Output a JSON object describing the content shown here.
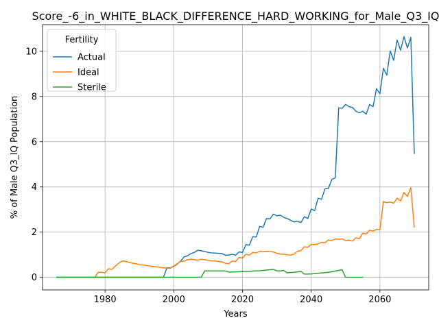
{
  "chart_data": {
    "type": "line",
    "title": "Score_-6_in_WHITE_BLACK_DIFFERENCE_HARD_WORKING_for_Male_Q3_IQ",
    "xlabel": "Years",
    "ylabel": "% of Male Q3_IQ Population",
    "xlim": [
      1961.8,
      2074.2
    ],
    "ylim": [
      -0.56,
      11.18
    ],
    "xticks": [
      1980,
      2000,
      2020,
      2040,
      2060
    ],
    "yticks": [
      0,
      2,
      4,
      6,
      8,
      10
    ],
    "grid": true,
    "legend": {
      "title": "Fertility",
      "position": "top-left"
    },
    "series": [
      {
        "name": "Actual",
        "color": "#1f77b4",
        "x": [
          1966,
          1970,
          1975,
          1980,
          1985,
          1990,
          1995,
          1997,
          1998,
          1999,
          2000,
          2001,
          2002,
          2003,
          2004,
          2005,
          2006,
          2007,
          2008,
          2009,
          2010,
          2011,
          2012,
          2013,
          2014,
          2015,
          2016,
          2017,
          2018,
          2019,
          2020,
          2021,
          2022,
          2023,
          2024,
          2025,
          2026,
          2027,
          2028,
          2029,
          2030,
          2031,
          2032,
          2033,
          2034,
          2035,
          2036,
          2037,
          2038,
          2039,
          2040,
          2041,
          2042,
          2043,
          2044,
          2045,
          2046,
          2047,
          2048,
          2049,
          2050,
          2051,
          2052,
          2053,
          2054,
          2055,
          2056,
          2057,
          2058,
          2059,
          2060,
          2061,
          2062,
          2063,
          2064,
          2065,
          2066,
          2067,
          2068,
          2069,
          2070
        ],
        "values": [
          0,
          0,
          0,
          0,
          0,
          0,
          0,
          0,
          0.42,
          0.42,
          0.48,
          0.58,
          0.72,
          0.9,
          0.95,
          1.05,
          1.1,
          1.2,
          1.17,
          1.14,
          1.1,
          1.08,
          1.07,
          1.06,
          1.05,
          0.98,
          0.98,
          1.02,
          0.98,
          1.12,
          1.1,
          1.45,
          1.42,
          1.8,
          1.78,
          2.25,
          2.22,
          2.6,
          2.58,
          2.8,
          2.72,
          2.75,
          2.65,
          2.6,
          2.52,
          2.45,
          2.48,
          2.42,
          2.68,
          2.6,
          3.02,
          2.95,
          3.5,
          3.45,
          3.92,
          3.93,
          4.33,
          4.4,
          7.5,
          7.48,
          7.65,
          7.55,
          7.52,
          7.35,
          7.28,
          7.35,
          7.22,
          7.65,
          7.55,
          8.35,
          8.12,
          9.25,
          8.95,
          10.02,
          9.6,
          10.5,
          10.05,
          10.65,
          10.15,
          10.62,
          5.48
        ]
      },
      {
        "name": "Ideal",
        "color": "#ff7f0e",
        "x": [
          1966,
          1970,
          1975,
          1977,
          1978,
          1979,
          1980,
          1981,
          1982,
          1983,
          1984,
          1985,
          1986,
          1987,
          1988,
          1989,
          1990,
          1991,
          1992,
          1993,
          1994,
          1995,
          1996,
          1997,
          1998,
          1999,
          2000,
          2001,
          2002,
          2003,
          2004,
          2005,
          2006,
          2007,
          2008,
          2009,
          2010,
          2011,
          2012,
          2013,
          2014,
          2015,
          2016,
          2017,
          2018,
          2019,
          2020,
          2021,
          2022,
          2023,
          2024,
          2025,
          2026,
          2027,
          2028,
          2029,
          2030,
          2031,
          2032,
          2033,
          2034,
          2035,
          2036,
          2037,
          2038,
          2039,
          2040,
          2041,
          2042,
          2043,
          2044,
          2045,
          2046,
          2047,
          2048,
          2049,
          2050,
          2051,
          2052,
          2053,
          2054,
          2055,
          2056,
          2057,
          2058,
          2059,
          2060,
          2061,
          2062,
          2063,
          2064,
          2065,
          2066,
          2067,
          2068,
          2069,
          2070
        ],
        "values": [
          0,
          0,
          0,
          0,
          0.22,
          0.22,
          0.2,
          0.38,
          0.35,
          0.5,
          0.62,
          0.73,
          0.7,
          0.66,
          0.62,
          0.6,
          0.56,
          0.54,
          0.52,
          0.5,
          0.48,
          0.46,
          0.44,
          0.42,
          0.4,
          0.4,
          0.5,
          0.6,
          0.7,
          0.72,
          0.78,
          0.8,
          0.78,
          0.76,
          0.8,
          0.78,
          0.75,
          0.72,
          0.72,
          0.7,
          0.68,
          0.62,
          0.6,
          0.72,
          0.7,
          0.88,
          0.85,
          1.02,
          0.98,
          1.1,
          1.08,
          1.15,
          1.13,
          1.15,
          1.14,
          1.12,
          1.06,
          1.03,
          1.02,
          1.0,
          0.98,
          1.03,
          1.15,
          1.18,
          1.35,
          1.33,
          1.45,
          1.45,
          1.48,
          1.55,
          1.53,
          1.65,
          1.62,
          1.7,
          1.68,
          1.7,
          1.62,
          1.65,
          1.6,
          1.75,
          1.7,
          1.95,
          1.92,
          2.08,
          2.05,
          2.12,
          2.1,
          3.35,
          3.3,
          3.33,
          3.28,
          3.5,
          3.38,
          3.75,
          3.58,
          3.97,
          2.22
        ]
      },
      {
        "name": "Sterile",
        "color": "#2ca02c",
        "x": [
          1966,
          1970,
          1975,
          1980,
          1985,
          1990,
          1995,
          2000,
          2005,
          2008,
          2009,
          2010,
          2015,
          2016,
          2020,
          2025,
          2029,
          2030,
          2031,
          2032,
          2033,
          2034,
          2035,
          2036,
          2037,
          2038,
          2039,
          2040,
          2045,
          2049,
          2050,
          2051,
          2055
        ],
        "values": [
          0,
          0,
          0,
          0,
          0,
          0,
          0,
          0,
          0,
          0,
          0.28,
          0.28,
          0.28,
          0.23,
          0.25,
          0.29,
          0.35,
          0.28,
          0.28,
          0.3,
          0.2,
          0.21,
          0.22,
          0.24,
          0.26,
          0.14,
          0.14,
          0.15,
          0.22,
          0.33,
          0,
          0,
          0
        ]
      }
    ]
  }
}
